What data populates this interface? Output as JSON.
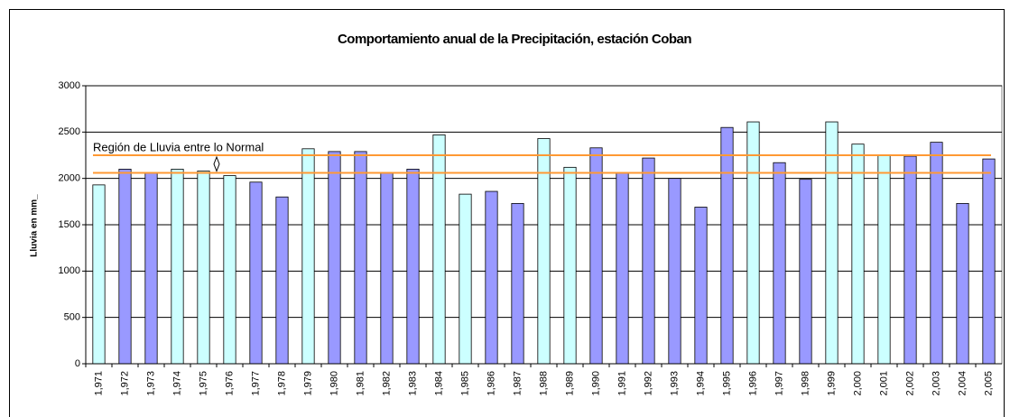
{
  "chart_data": {
    "type": "bar",
    "title": "Comportamiento anual de la Precipitación, estación Coban",
    "y_label": "Lluvia en mm_",
    "annotation": "Región de Lluvia entre lo Normal",
    "categories": [
      "1,971",
      "1,972",
      "1,973",
      "1,974",
      "1,975",
      "1,976",
      "1,977",
      "1,978",
      "1,979",
      "1,980",
      "1,981",
      "1,982",
      "1,983",
      "1,984",
      "1,985",
      "1,986",
      "1,987",
      "1,988",
      "1,989",
      "1,990",
      "1,991",
      "1,992",
      "1,993",
      "1,994",
      "1,995",
      "1,996",
      "1,997",
      "1,998",
      "1,999",
      "2,000",
      "2,001",
      "2,002",
      "2,003",
      "2,004",
      "2,005"
    ],
    "values": [
      1930,
      2100,
      2060,
      2100,
      2080,
      2030,
      1960,
      1800,
      2320,
      2290,
      2290,
      2060,
      2100,
      2470,
      1830,
      1860,
      1730,
      2430,
      2120,
      2330,
      2060,
      2220,
      2000,
      1690,
      2550,
      2610,
      2170,
      1990,
      2610,
      2370,
      2250,
      2240,
      2390,
      1730,
      2210
    ],
    "colors": [
      "#ccffff",
      "#9999ff",
      "#9999ff",
      "#ccffff",
      "#ccffff",
      "#ccffff",
      "#9999ff",
      "#9999ff",
      "#ccffff",
      "#9999ff",
      "#9999ff",
      "#9999ff",
      "#9999ff",
      "#ccffff",
      "#ccffff",
      "#9999ff",
      "#9999ff",
      "#ccffff",
      "#ccffff",
      "#9999ff",
      "#9999ff",
      "#9999ff",
      "#9999ff",
      "#9999ff",
      "#9999ff",
      "#ccffff",
      "#9999ff",
      "#9999ff",
      "#ccffff",
      "#ccffff",
      "#ccffff",
      "#9999ff",
      "#9999ff",
      "#9999ff",
      "#9999ff"
    ],
    "reference_lines": [
      {
        "value": 2060,
        "color": "#ff9933"
      },
      {
        "value": 2250,
        "color": "#ff9933"
      }
    ],
    "ylim": [
      0,
      3000
    ],
    "yticks": [
      0,
      500,
      1000,
      1500,
      2000,
      2500,
      3000
    ],
    "grid": true
  }
}
